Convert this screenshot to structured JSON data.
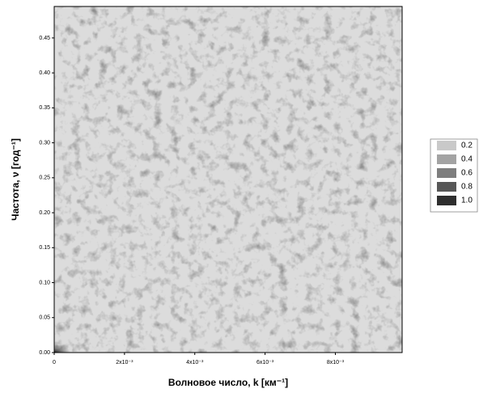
{
  "chart_data": {
    "type": "contour",
    "x_label": "Волновое число, k [км⁻¹]",
    "y_label": "Частота, ν [год⁻¹]",
    "xlim": [
      0,
      0.0099
    ],
    "ylim": [
      0,
      0.495
    ],
    "xticks": [
      0,
      {
        "value": 0.002,
        "label": "2x10⁻³"
      },
      {
        "value": 0.004,
        "label": "4x10⁻³"
      },
      {
        "value": 0.006,
        "label": "6x10⁻³"
      },
      {
        "value": 0.008,
        "label": "8x10⁻³"
      }
    ],
    "yticks": [
      {
        "value": 0,
        "label": "0.00"
      },
      0.05,
      {
        "value": 0.1,
        "label": "0.10"
      },
      0.15,
      {
        "value": 0.2,
        "label": "0.20"
      },
      0.25,
      {
        "value": 0.3,
        "label": "0.30"
      },
      0.35,
      {
        "value": 0.4,
        "label": "0.40"
      },
      0.45
    ],
    "legend": {
      "levels": [
        0.2,
        0.4,
        0.6,
        0.8,
        {
          "value": 1,
          "label": "1.0"
        }
      ],
      "colors": [
        "#c9c9c9",
        "#a3a3a3",
        "#7e7e7e",
        "#575757",
        "#2e2e2e"
      ]
    }
  }
}
